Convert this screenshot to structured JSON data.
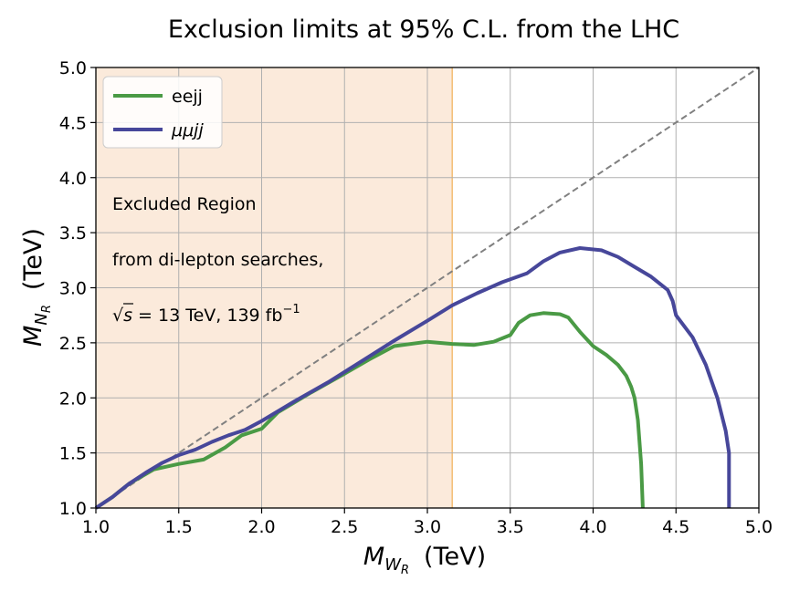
{
  "chart_data": {
    "type": "line",
    "title": "Exclusion limits at 95% C.L. from the LHC",
    "xlabel": {
      "symbol": "M",
      "subscript": "W",
      "subsubscript": "R",
      "unit": "(TeV)"
    },
    "ylabel": {
      "symbol": "M",
      "subscript": "N",
      "subsubscript": "R",
      "unit": "(TeV)"
    },
    "xlim": [
      1.0,
      5.0
    ],
    "ylim": [
      1.0,
      5.0
    ],
    "xticks": [
      1.0,
      1.5,
      2.0,
      2.5,
      3.0,
      3.5,
      4.0,
      4.5,
      5.0
    ],
    "yticks": [
      1.0,
      1.5,
      2.0,
      2.5,
      3.0,
      3.5,
      4.0,
      4.5,
      5.0
    ],
    "xtick_labels": [
      "1.0",
      "1.5",
      "2.0",
      "2.5",
      "3.0",
      "3.5",
      "4.0",
      "4.5",
      "5.0"
    ],
    "ytick_labels": [
      "1.0",
      "1.5",
      "2.0",
      "2.5",
      "3.0",
      "3.5",
      "4.0",
      "4.5",
      "5.0"
    ],
    "grid": true,
    "legend_location": "top-left",
    "excluded_region": {
      "x_from": 1.0,
      "x_to": 3.15,
      "fill": "#fbeadb",
      "edge": "#f4c07a"
    },
    "diagonal": {
      "x": [
        1.0,
        5.0
      ],
      "y": [
        1.0,
        5.0
      ],
      "color": "#808080",
      "style": "dashed"
    },
    "annotations": {
      "line1": "Excluded Region",
      "line2": "from di-lepton searches,",
      "line3_sqrt": "√",
      "line3_s": "s",
      "line3_rest": " = 13 TeV, 139 fb",
      "line3_sup": "−1"
    },
    "series": [
      {
        "name": "eejj",
        "color": "#4a9a45",
        "x": [
          1.0,
          1.1,
          1.2,
          1.35,
          1.5,
          1.65,
          1.78,
          1.88,
          2.0,
          2.1,
          2.3,
          2.5,
          2.65,
          2.8,
          3.0,
          3.15,
          3.28,
          3.4,
          3.5,
          3.55,
          3.62,
          3.7,
          3.8,
          3.85,
          3.92,
          4.0,
          4.08,
          4.15,
          4.2,
          4.23,
          4.25,
          4.27,
          4.28,
          4.29,
          4.3
        ],
        "y": [
          1.0,
          1.1,
          1.22,
          1.35,
          1.4,
          1.44,
          1.55,
          1.66,
          1.72,
          1.87,
          2.05,
          2.22,
          2.35,
          2.47,
          2.51,
          2.49,
          2.48,
          2.51,
          2.57,
          2.68,
          2.75,
          2.77,
          2.76,
          2.73,
          2.6,
          2.47,
          2.39,
          2.3,
          2.2,
          2.1,
          2.0,
          1.8,
          1.6,
          1.4,
          1.0
        ]
      },
      {
        "name": "μμjj",
        "color": "#47479a",
        "x": [
          1.0,
          1.1,
          1.2,
          1.3,
          1.4,
          1.5,
          1.6,
          1.7,
          1.8,
          1.9,
          2.0,
          2.2,
          2.4,
          2.6,
          2.8,
          3.0,
          3.15,
          3.3,
          3.45,
          3.6,
          3.7,
          3.8,
          3.92,
          4.05,
          4.15,
          4.25,
          4.35,
          4.45,
          4.48,
          4.5,
          4.6,
          4.68,
          4.75,
          4.8,
          4.82,
          4.82
        ],
        "y": [
          1.0,
          1.1,
          1.22,
          1.32,
          1.41,
          1.48,
          1.53,
          1.6,
          1.66,
          1.71,
          1.79,
          1.97,
          2.14,
          2.33,
          2.52,
          2.7,
          2.84,
          2.95,
          3.05,
          3.13,
          3.24,
          3.32,
          3.36,
          3.34,
          3.28,
          3.19,
          3.1,
          2.98,
          2.88,
          2.75,
          2.55,
          2.3,
          2.0,
          1.7,
          1.5,
          1.0
        ]
      }
    ]
  }
}
